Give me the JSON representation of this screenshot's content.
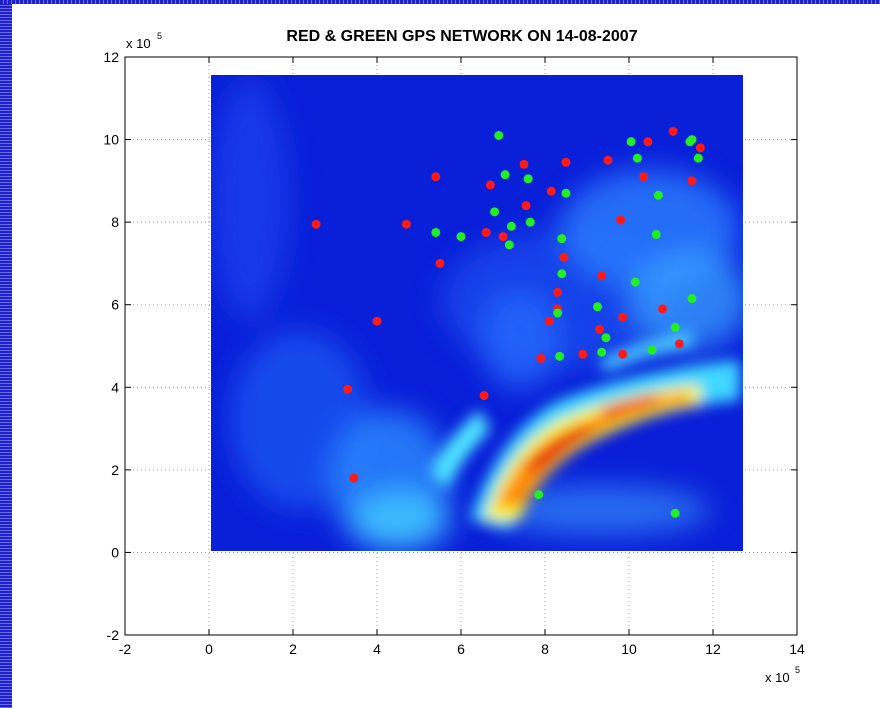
{
  "chart_data": {
    "type": "scatter",
    "title": "RED & GREEN GPS NETWORK ON 14-08-2007",
    "xlabel": "",
    "ylabel": "",
    "x_multiplier": "x 10",
    "x_multiplier_exp": "5",
    "y_multiplier": "x 10",
    "y_multiplier_exp": "5",
    "xlim": [
      -2,
      14
    ],
    "ylim": [
      -2,
      12
    ],
    "xticks": [
      "-2",
      "0",
      "2",
      "4",
      "6",
      "8",
      "10",
      "12",
      "14"
    ],
    "yticks": [
      "-2",
      "0",
      "2",
      "4",
      "6",
      "8",
      "10",
      "12"
    ],
    "grid": true,
    "background_field": "colormap heat field (jet) over x 0–12.6, y 0–11.5",
    "series": [
      {
        "color": "#ff1a1a",
        "points": [
          [
            2.55,
            7.95
          ],
          [
            3.3,
            3.95
          ],
          [
            3.45,
            1.8
          ],
          [
            4.0,
            5.6
          ],
          [
            4.7,
            7.95
          ],
          [
            5.4,
            9.1
          ],
          [
            5.5,
            7.0
          ],
          [
            6.55,
            3.8
          ],
          [
            6.6,
            7.75
          ],
          [
            6.7,
            8.9
          ],
          [
            7.0,
            7.65
          ],
          [
            7.5,
            9.4
          ],
          [
            7.55,
            8.4
          ],
          [
            7.9,
            4.7
          ],
          [
            8.1,
            5.6
          ],
          [
            8.15,
            8.75
          ],
          [
            8.3,
            6.3
          ],
          [
            8.3,
            5.9
          ],
          [
            8.45,
            7.15
          ],
          [
            8.5,
            9.45
          ],
          [
            8.9,
            4.8
          ],
          [
            9.3,
            5.4
          ],
          [
            9.35,
            6.7
          ],
          [
            9.5,
            9.5
          ],
          [
            9.8,
            8.05
          ],
          [
            9.85,
            5.7
          ],
          [
            9.85,
            4.8
          ],
          [
            10.35,
            9.1
          ],
          [
            10.45,
            9.95
          ],
          [
            10.8,
            5.9
          ],
          [
            11.05,
            10.2
          ],
          [
            11.2,
            5.05
          ],
          [
            11.5,
            9.0
          ],
          [
            11.7,
            9.8
          ]
        ]
      },
      {
        "color": "#22ee22",
        "points": [
          [
            5.4,
            7.75
          ],
          [
            6.0,
            7.65
          ],
          [
            6.8,
            8.25
          ],
          [
            6.9,
            10.1
          ],
          [
            7.05,
            9.15
          ],
          [
            7.15,
            7.45
          ],
          [
            7.2,
            7.9
          ],
          [
            7.6,
            9.05
          ],
          [
            7.65,
            8.0
          ],
          [
            7.85,
            1.4
          ],
          [
            8.3,
            5.8
          ],
          [
            8.35,
            4.75
          ],
          [
            8.4,
            7.6
          ],
          [
            8.4,
            6.75
          ],
          [
            8.5,
            8.7
          ],
          [
            9.25,
            5.95
          ],
          [
            9.35,
            4.85
          ],
          [
            9.45,
            5.2
          ],
          [
            10.05,
            9.95
          ],
          [
            10.15,
            6.55
          ],
          [
            10.2,
            9.55
          ],
          [
            10.55,
            4.9
          ],
          [
            10.65,
            7.7
          ],
          [
            10.7,
            8.65
          ],
          [
            11.1,
            5.45
          ],
          [
            11.1,
            0.95
          ],
          [
            11.45,
            9.95
          ],
          [
            11.5,
            10.0
          ],
          [
            11.5,
            6.15
          ],
          [
            11.65,
            9.55
          ]
        ]
      }
    ]
  }
}
